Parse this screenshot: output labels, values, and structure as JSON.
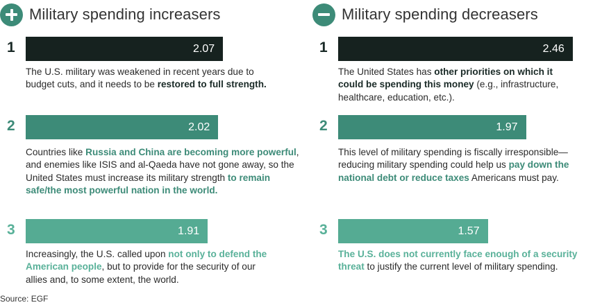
{
  "colors": {
    "rank1": "#16221f",
    "rank2": "#3d8b78",
    "rank3": "#55ab93",
    "accent_text1": "#1a2a27",
    "accent_text2": "#3d8b78",
    "accent_text3": "#59b199",
    "icon": "#3d8b78"
  },
  "increasers": {
    "title": "Military spending increasers",
    "icon": "plus-icon",
    "items": [
      {
        "rank": "1",
        "value_label": "2.07",
        "segments": [
          {
            "text": "The U.S. military was weakened in recent years due to budget cuts, and it needs to be ",
            "bold": false
          },
          {
            "text": "restored to full strength.",
            "bold": true
          }
        ]
      },
      {
        "rank": "2",
        "value_label": "2.02",
        "segments": [
          {
            "text": "Countries like ",
            "bold": false
          },
          {
            "text": "Russia and China are becoming more powerful",
            "bold": true
          },
          {
            "text": ", and enemies like ISIS and al-Qaeda have not gone away, so the United States must increase its military strength ",
            "bold": false
          },
          {
            "text": "to remain safe/the most powerful nation in the world.",
            "bold": true
          }
        ]
      },
      {
        "rank": "3",
        "value_label": "1.91",
        "segments": [
          {
            "text": "Increasingly, the U.S. called upon ",
            "bold": false
          },
          {
            "text": "not only to defend the American people",
            "bold": true
          },
          {
            "text": ", but to provide for the security of our allies and, to some extent, the world.",
            "bold": false
          }
        ]
      }
    ]
  },
  "decreasers": {
    "title": "Military spending decreasers",
    "icon": "minus-icon",
    "items": [
      {
        "rank": "1",
        "value_label": "2.46",
        "segments": [
          {
            "text": "The United States has ",
            "bold": false
          },
          {
            "text": "other priorities on which it could be spending this money",
            "bold": true
          },
          {
            "text": " (e.g., infrastructure, healthcare, education, etc.).",
            "bold": false
          }
        ]
      },
      {
        "rank": "2",
        "value_label": "1.97",
        "segments": [
          {
            "text": "This level of military spending is fiscally irresponsible—reducing military spending could help us ",
            "bold": false
          },
          {
            "text": "pay down the national debt or reduce taxes",
            "bold": true
          },
          {
            "text": " Americans must pay.",
            "bold": false
          }
        ]
      },
      {
        "rank": "3",
        "value_label": "1.57",
        "segments": [
          {
            "text": "The U.S. does not currently face enough of a security threat",
            "bold": true
          },
          {
            "text": " to justify the current level of military spending.",
            "bold": false
          }
        ]
      }
    ]
  },
  "chart_data": {
    "type": "bar",
    "title": "",
    "series": [
      {
        "name": "Military spending increasers",
        "categories": [
          "1",
          "2",
          "3"
        ],
        "values": [
          2.07,
          2.02,
          1.91
        ]
      },
      {
        "name": "Military spending decreasers",
        "categories": [
          "1",
          "2",
          "3"
        ],
        "values": [
          2.46,
          1.97,
          1.57
        ]
      }
    ],
    "xlim": [
      0,
      3.1
    ]
  },
  "source": "Source: EGF"
}
